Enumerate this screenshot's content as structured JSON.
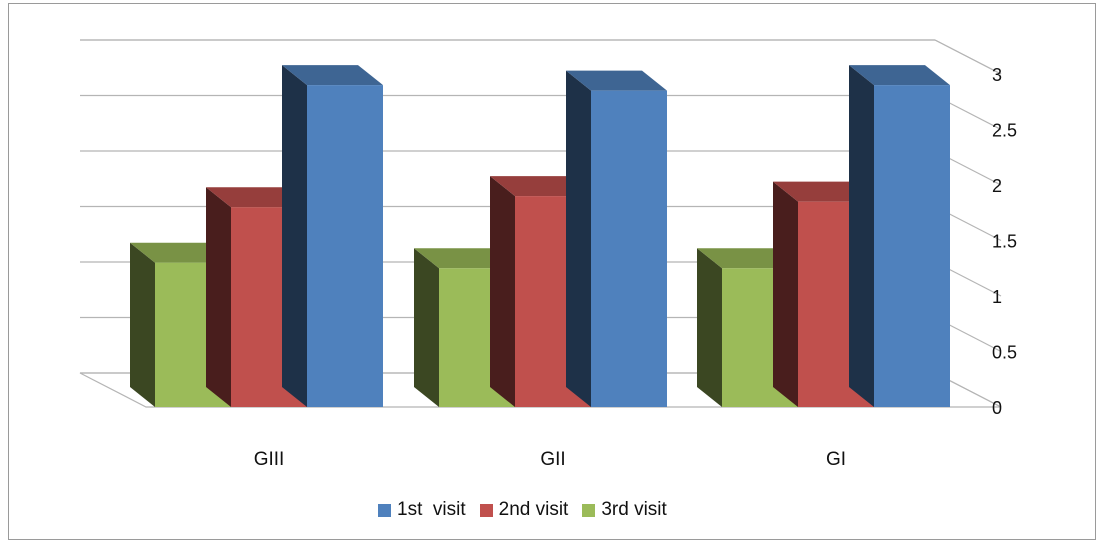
{
  "chart_data": {
    "type": "bar",
    "style": "3d-clustered-column",
    "categories": [
      "GIII",
      "GII",
      "GI"
    ],
    "series": [
      {
        "name": "3rd visit",
        "values": [
          1.3,
          1.25,
          1.25
        ],
        "color": "#9bbb59"
      },
      {
        "name": "2nd visit",
        "values": [
          1.8,
          1.9,
          1.85
        ],
        "color": "#c0504d"
      },
      {
        "name": "1st  visit",
        "values": [
          2.9,
          2.85,
          2.9
        ],
        "color": "#4f81bd"
      }
    ],
    "ylim": [
      0,
      3
    ],
    "yticks": [
      "0",
      "0.5",
      "1",
      "1.5",
      "2",
      "2.5",
      "3"
    ],
    "ytick_values": [
      0,
      0.5,
      1,
      1.5,
      2,
      2.5,
      3
    ],
    "y_axis_position": "right",
    "grid": true,
    "legend_position": "bottom",
    "legend_order": [
      "1st  visit",
      "2nd visit",
      "3rd visit"
    ]
  }
}
